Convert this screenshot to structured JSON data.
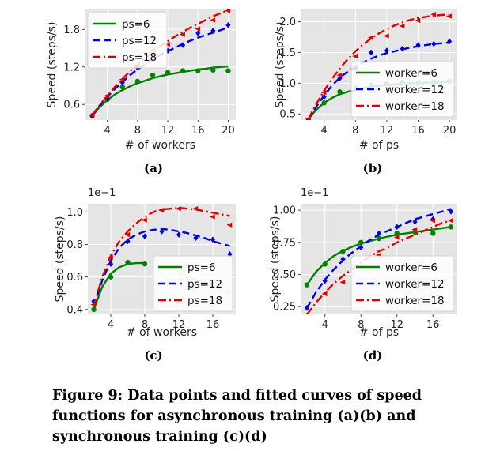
{
  "caption": "Figure 9: Data points and fitted curves of speed functions for asynchronous training (a)(b) and synchronous training (c)(d)",
  "chart_data": [
    {
      "type": "line",
      "label": "(a)",
      "xlabel": "# of workers",
      "ylabel": "Speed (steps/s)",
      "exponent": "",
      "xlim": [
        1,
        21
      ],
      "ylim": [
        0.35,
        2.12
      ],
      "xticks": [
        4,
        8,
        12,
        16,
        20
      ],
      "yticks": [
        0.6,
        1.2,
        1.8
      ],
      "ytick_labels": [
        "0.6",
        "1.2",
        "1.8"
      ],
      "legend_loc": "top-left",
      "series": [
        {
          "name": "ps=6",
          "color": "#008000",
          "dash": "solid",
          "marker": "circle",
          "fit_x": [
            2,
            3,
            4,
            5,
            6,
            7,
            8,
            9,
            10,
            11,
            12,
            13,
            14,
            15,
            16,
            17,
            18,
            19,
            20
          ],
          "fit_y": [
            0.42,
            0.56,
            0.67,
            0.76,
            0.83,
            0.89,
            0.94,
            0.98,
            1.02,
            1.05,
            1.08,
            1.1,
            1.12,
            1.14,
            1.16,
            1.17,
            1.19,
            1.2,
            1.21
          ],
          "points_x": [
            2,
            4,
            6,
            8,
            10,
            12,
            14,
            16,
            18,
            20
          ],
          "points_y": [
            0.42,
            0.68,
            0.88,
            0.97,
            1.07,
            1.11,
            1.14,
            1.14,
            1.15,
            1.14
          ]
        },
        {
          "name": "ps=12",
          "color": "#0000dd",
          "dash": "dashed",
          "marker": "diamond",
          "fit_x": [
            2,
            3,
            4,
            5,
            6,
            7,
            8,
            9,
            10,
            11,
            12,
            13,
            14,
            15,
            16,
            17,
            18,
            19,
            20
          ],
          "fit_y": [
            0.42,
            0.58,
            0.72,
            0.85,
            0.96,
            1.07,
            1.16,
            1.24,
            1.32,
            1.39,
            1.45,
            1.51,
            1.57,
            1.62,
            1.67,
            1.71,
            1.75,
            1.79,
            1.83
          ],
          "points_x": [
            2,
            4,
            6,
            8,
            10,
            12,
            14,
            16,
            18,
            20
          ],
          "points_y": [
            0.42,
            0.7,
            0.95,
            1.19,
            1.35,
            1.46,
            1.55,
            1.74,
            1.78,
            1.87
          ]
        },
        {
          "name": "ps=18",
          "color": "#e00000",
          "dash": "dashdot",
          "marker": "triangle",
          "fit_x": [
            2,
            3,
            4,
            5,
            6,
            7,
            8,
            9,
            10,
            11,
            12,
            13,
            14,
            15,
            16,
            17,
            18,
            19,
            20
          ],
          "fit_y": [
            0.43,
            0.59,
            0.74,
            0.88,
            1.01,
            1.13,
            1.24,
            1.34,
            1.44,
            1.53,
            1.61,
            1.69,
            1.76,
            1.83,
            1.89,
            1.95,
            2.01,
            2.06,
            2.11
          ],
          "points_x": [
            2,
            4,
            6,
            8,
            10,
            12,
            14,
            16,
            18,
            20
          ],
          "points_y": [
            0.43,
            0.74,
            1.0,
            1.23,
            1.46,
            1.56,
            1.72,
            1.81,
            1.95,
            2.1
          ]
        }
      ]
    },
    {
      "type": "line",
      "label": "(b)",
      "xlabel": "# of ps",
      "ylabel": "Speed (steps/s)",
      "exponent": "",
      "xlim": [
        1,
        21
      ],
      "ylim": [
        0.4,
        2.2
      ],
      "xticks": [
        4,
        8,
        12,
        16,
        20
      ],
      "yticks": [
        0.5,
        1.0,
        1.5,
        2.0
      ],
      "ytick_labels": [
        "0.5",
        "1.0",
        "1.5",
        "2.0"
      ],
      "legend_loc": "bottom-right",
      "series": [
        {
          "name": "worker=6",
          "color": "#008000",
          "dash": "solid",
          "marker": "circle",
          "fit_x": [
            2,
            3,
            4,
            5,
            6,
            7,
            8,
            9,
            10,
            11,
            12,
            13,
            14,
            15,
            16,
            17,
            18,
            19,
            20
          ],
          "fit_y": [
            0.42,
            0.57,
            0.68,
            0.76,
            0.82,
            0.86,
            0.89,
            0.92,
            0.94,
            0.96,
            0.97,
            0.98,
            0.99,
            1.0,
            1.0,
            1.01,
            1.01,
            1.02,
            1.02
          ],
          "points_x": [
            2,
            4,
            6,
            8,
            10,
            12,
            14,
            16,
            18,
            20
          ],
          "points_y": [
            0.4,
            0.68,
            0.86,
            0.92,
            0.97,
            0.99,
            1.01,
            1.0,
            1.02,
            1.03
          ]
        },
        {
          "name": "worker=12",
          "color": "#0000dd",
          "dash": "dashed",
          "marker": "diamond",
          "fit_x": [
            2,
            3,
            4,
            5,
            6,
            7,
            8,
            9,
            10,
            11,
            12,
            13,
            14,
            15,
            16,
            17,
            18,
            19,
            20
          ],
          "fit_y": [
            0.41,
            0.62,
            0.8,
            0.96,
            1.09,
            1.19,
            1.27,
            1.34,
            1.4,
            1.45,
            1.49,
            1.52,
            1.55,
            1.58,
            1.6,
            1.62,
            1.64,
            1.65,
            1.66
          ],
          "points_x": [
            2,
            4,
            6,
            8,
            10,
            12,
            14,
            16,
            18,
            20
          ],
          "points_y": [
            0.4,
            0.78,
            1.08,
            1.25,
            1.5,
            1.53,
            1.56,
            1.62,
            1.64,
            1.68
          ]
        },
        {
          "name": "worker=18",
          "color": "#e00000",
          "dash": "dashdot",
          "marker": "triangle",
          "fit_x": [
            2,
            3,
            4,
            5,
            6,
            7,
            8,
            9,
            10,
            11,
            12,
            13,
            14,
            15,
            16,
            17,
            18,
            19,
            20
          ],
          "fit_y": [
            0.42,
            0.66,
            0.88,
            1.07,
            1.24,
            1.39,
            1.52,
            1.63,
            1.73,
            1.81,
            1.88,
            1.94,
            1.99,
            2.03,
            2.06,
            2.08,
            2.1,
            2.11,
            2.12
          ],
          "points_x": [
            2,
            4,
            6,
            8,
            10,
            12,
            14,
            16,
            18,
            20
          ],
          "points_y": [
            0.42,
            0.85,
            1.13,
            1.44,
            1.74,
            1.77,
            1.93,
            2.02,
            2.12,
            2.09
          ]
        }
      ]
    },
    {
      "type": "line",
      "label": "(c)",
      "xlabel": "# of workers",
      "ylabel": "Speed (steps/s)",
      "exponent": "1e−1",
      "xlim": [
        1.3,
        18.7
      ],
      "ylim": [
        0.37,
        1.05
      ],
      "xticks": [
        4,
        8,
        12,
        16
      ],
      "yticks": [
        0.4,
        0.6,
        0.8,
        1.0
      ],
      "ytick_labels": [
        "0.4",
        "0.6",
        "0.8",
        "1.0"
      ],
      "legend_loc": "bottom-right",
      "series": [
        {
          "name": "ps=6",
          "color": "#008000",
          "dash": "solid",
          "marker": "circle",
          "fit_x": [
            2,
            3,
            4,
            5,
            6,
            7,
            8
          ],
          "fit_y": [
            0.4,
            0.54,
            0.62,
            0.66,
            0.68,
            0.685,
            0.685
          ],
          "points_x": [
            2,
            4,
            6,
            8
          ],
          "points_y": [
            0.4,
            0.6,
            0.69,
            0.68
          ]
        },
        {
          "name": "ps=12",
          "color": "#0000dd",
          "dash": "dashed",
          "marker": "diamond",
          "fit_x": [
            2,
            3,
            4,
            5,
            6,
            7,
            8,
            9,
            10,
            11,
            12,
            13,
            14,
            15,
            16,
            17,
            18
          ],
          "fit_y": [
            0.42,
            0.58,
            0.7,
            0.78,
            0.83,
            0.86,
            0.88,
            0.89,
            0.895,
            0.89,
            0.88,
            0.87,
            0.855,
            0.84,
            0.82,
            0.805,
            0.79
          ],
          "points_x": [
            2,
            4,
            6,
            8,
            10,
            12,
            14,
            16,
            18
          ],
          "points_y": [
            0.45,
            0.68,
            0.82,
            0.85,
            0.88,
            0.86,
            0.84,
            0.83,
            0.74
          ]
        },
        {
          "name": "ps=18",
          "color": "#e00000",
          "dash": "dashdot",
          "marker": "triangle",
          "fit_x": [
            2,
            3,
            4,
            5,
            6,
            7,
            8,
            9,
            10,
            11,
            12,
            13,
            14,
            15,
            16,
            17,
            18
          ],
          "fit_y": [
            0.42,
            0.6,
            0.73,
            0.82,
            0.88,
            0.93,
            0.97,
            1.0,
            1.015,
            1.02,
            1.025,
            1.02,
            1.015,
            1.005,
            0.995,
            0.985,
            0.975
          ],
          "points_x": [
            2,
            4,
            6,
            8,
            10,
            12,
            14,
            16,
            18
          ],
          "points_y": [
            0.43,
            0.72,
            0.86,
            0.95,
            1.01,
            1.02,
            1.02,
            0.97,
            0.92
          ]
        }
      ],
      "legend_fade_green": {
        "x": [
          12,
          18
        ],
        "y": [
          0.62,
          0.5
        ]
      }
    },
    {
      "type": "line",
      "label": "(d)",
      "xlabel": "# of ps",
      "ylabel": "Speed (steps/s)",
      "exponent": "1e−1",
      "xlim": [
        1.3,
        18.7
      ],
      "ylim": [
        0.19,
        1.05
      ],
      "xticks": [
        4,
        8,
        12,
        16
      ],
      "yticks": [
        0.25,
        0.5,
        0.75,
        1.0
      ],
      "ytick_labels": [
        "0.25",
        "0.50",
        "0.75",
        "1.00"
      ],
      "legend_loc": "bottom-right",
      "series": [
        {
          "name": "worker=6",
          "color": "#008000",
          "dash": "solid",
          "marker": "circle",
          "fit_x": [
            2,
            3,
            4,
            5,
            6,
            7,
            8,
            9,
            10,
            11,
            12,
            13,
            14,
            15,
            16,
            17,
            18
          ],
          "fit_y": [
            0.42,
            0.52,
            0.59,
            0.645,
            0.685,
            0.715,
            0.74,
            0.76,
            0.78,
            0.795,
            0.81,
            0.82,
            0.83,
            0.84,
            0.85,
            0.86,
            0.87
          ],
          "points_x": [
            2,
            4,
            6,
            8,
            10,
            12,
            14,
            16,
            18
          ],
          "points_y": [
            0.42,
            0.58,
            0.68,
            0.75,
            0.78,
            0.82,
            0.83,
            0.82,
            0.87
          ]
        },
        {
          "name": "worker=12",
          "color": "#0000dd",
          "dash": "dashed",
          "marker": "diamond",
          "fit_x": [
            2,
            3,
            4,
            5,
            6,
            7,
            8,
            9,
            10,
            11,
            12,
            13,
            14,
            15,
            16,
            17,
            18
          ],
          "fit_y": [
            0.24,
            0.36,
            0.46,
            0.54,
            0.61,
            0.67,
            0.72,
            0.77,
            0.81,
            0.84,
            0.87,
            0.9,
            0.93,
            0.95,
            0.97,
            0.99,
            1.01
          ],
          "points_x": [
            2,
            4,
            6,
            8,
            10,
            12,
            14,
            16,
            18
          ],
          "points_y": [
            0.24,
            0.45,
            0.62,
            0.71,
            0.82,
            0.87,
            0.91,
            0.93,
            0.99
          ]
        },
        {
          "name": "worker=18",
          "color": "#e00000",
          "dash": "dashdot",
          "marker": "triangle",
          "fit_x": [
            2,
            3,
            4,
            5,
            6,
            7,
            8,
            9,
            10,
            11,
            12,
            13,
            14,
            15,
            16,
            17,
            18
          ],
          "fit_y": [
            0.19,
            0.28,
            0.36,
            0.43,
            0.49,
            0.54,
            0.59,
            0.64,
            0.68,
            0.71,
            0.75,
            0.78,
            0.81,
            0.84,
            0.87,
            0.9,
            0.92
          ],
          "points_x": [
            2,
            4,
            6,
            8,
            10,
            12,
            14,
            16,
            18
          ],
          "points_y": [
            0.19,
            0.35,
            0.44,
            0.56,
            0.65,
            0.79,
            0.85,
            0.92,
            0.92
          ]
        }
      ]
    }
  ]
}
